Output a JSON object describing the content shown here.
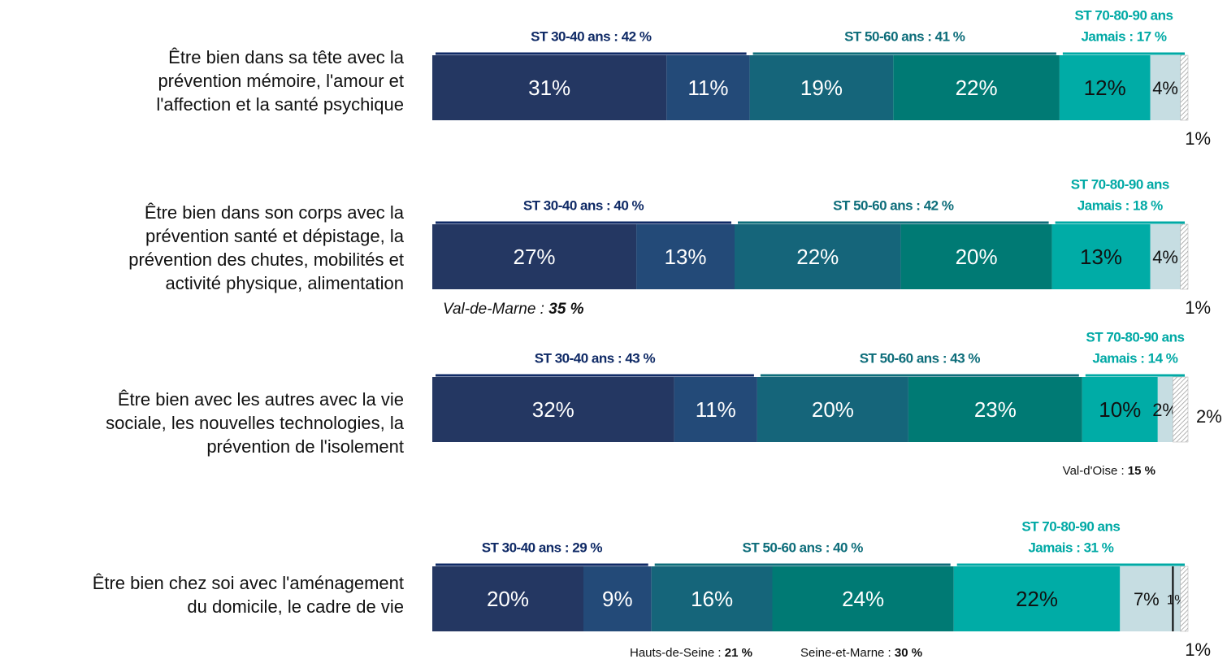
{
  "chart_data": {
    "type": "bar",
    "orientation": "horizontal",
    "stacked": true,
    "categories": [
      "Être bien dans sa tête avec la prévention mémoire, l'amour et l'affection et la santé psychique",
      "Être bien dans son corps avec la prévention santé et dépistage, la prévention des chutes, mobilités et activité physique, alimentation",
      "Être bien avec les autres avec la vie sociale, les nouvelles technologies, la prévention de l'isolement",
      "Être bien chez soi avec l'aménagement du domicile, le cadre de vie"
    ],
    "xlim": [
      0,
      100
    ],
    "series": [
      {
        "color": "#243762",
        "values": [
          31,
          27,
          32,
          20
        ],
        "value_labels": [
          "31%",
          "27%",
          "32%",
          "20%"
        ]
      },
      {
        "color": "#234a78",
        "values": [
          11,
          13,
          11,
          9
        ],
        "value_labels": [
          "11%",
          "13%",
          "11%",
          "9%"
        ]
      },
      {
        "color": "#15657a",
        "values": [
          19,
          22,
          20,
          16
        ],
        "value_labels": [
          "19%",
          "22%",
          "20%",
          "16%"
        ]
      },
      {
        "color": "#007a74",
        "values": [
          22,
          20,
          23,
          24
        ],
        "value_labels": [
          "22%",
          "20%",
          "23%",
          "24%"
        ]
      },
      {
        "color": "#00aca6",
        "values": [
          12,
          13,
          10,
          22
        ],
        "value_labels": [
          "12%",
          "13%",
          "10%",
          "22%"
        ]
      },
      {
        "color": "#c6dde2",
        "values": [
          4,
          4,
          2,
          7
        ],
        "value_labels": [
          "4%",
          "4%",
          "2%",
          "7%"
        ]
      },
      {
        "color": "#c6dde2",
        "values": [
          null,
          null,
          null,
          1
        ],
        "value_labels": [
          null,
          null,
          null,
          "1%"
        ]
      },
      {
        "color": "hatch",
        "values": [
          1,
          1,
          2,
          1
        ],
        "value_labels": [
          "1%",
          "1%",
          "2%",
          "1%"
        ]
      }
    ],
    "group_labels": [
      [
        "ST 30-40 ans : 42 %",
        "ST 50-60 ans : 41 %",
        "ST 70-80-90 ans",
        "Jamais : 17 %"
      ],
      [
        "ST 30-40 ans : 40 %",
        "ST 50-60 ans : 42 %",
        "ST 70-80-90 ans",
        "Jamais : 18 %"
      ],
      [
        "ST 30-40 ans : 43 %",
        "ST 50-60 ans : 43 %",
        "ST 70-80-90 ans",
        "Jamais : 14 %"
      ],
      [
        "ST 30-40 ans : 29 %",
        "ST 50-60 ans : 40 %",
        "ST 70-80-90 ans",
        "Jamais : 31 %"
      ]
    ],
    "group_colors": [
      "#0f2a66",
      "#0d6d7a",
      "#00a9a5"
    ],
    "notes": [
      [],
      [
        "Val-de-Marne : 35 %"
      ],
      [
        "Val-d'Oise : 15 %"
      ],
      [
        "Hauts-de-Seine : 21 %",
        "Seine-et-Marne : 30 %"
      ]
    ]
  }
}
